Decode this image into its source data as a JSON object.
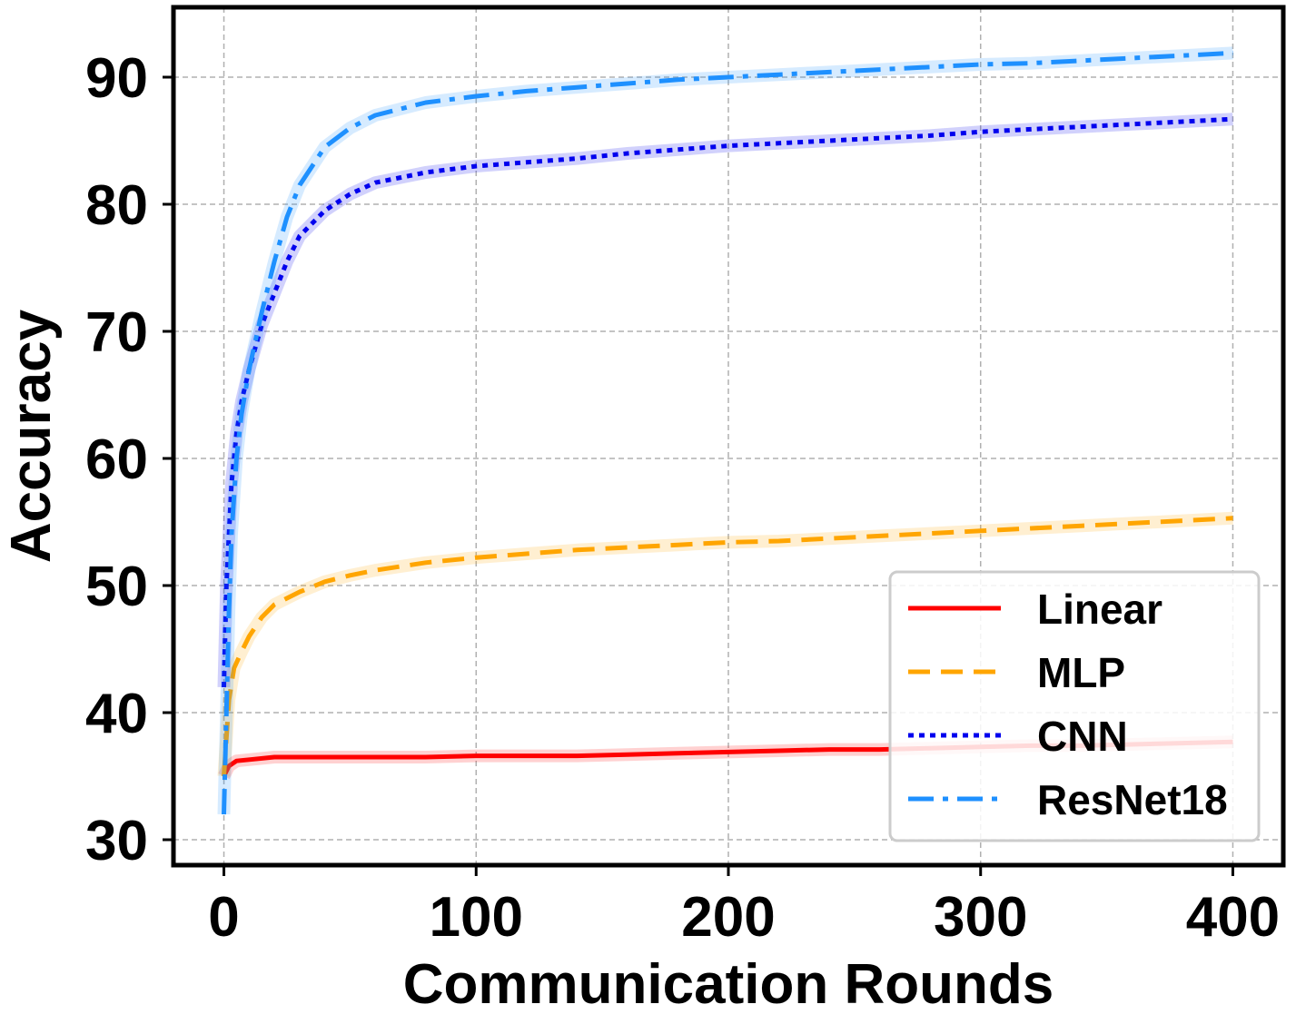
{
  "chart_data": {
    "type": "line",
    "title": "",
    "xlabel": "Communication Rounds",
    "ylabel": "Accuracy",
    "xlim": [
      -20,
      420
    ],
    "ylim": [
      28,
      95.5
    ],
    "xticks": [
      0,
      100,
      200,
      300,
      400
    ],
    "yticks": [
      30,
      40,
      50,
      60,
      70,
      80,
      90
    ],
    "grid": true,
    "legend_position": "lower-right",
    "shaded_band": true,
    "series": [
      {
        "name": "Linear",
        "color": "#ff0000",
        "style": "solid",
        "x": [
          0,
          2,
          5,
          10,
          20,
          40,
          60,
          80,
          100,
          120,
          140,
          160,
          180,
          200,
          220,
          240,
          260,
          280,
          300,
          320,
          340,
          360,
          380,
          400
        ],
        "y": [
          35.0,
          35.8,
          36.2,
          36.3,
          36.5,
          36.5,
          36.5,
          36.5,
          36.6,
          36.6,
          36.6,
          36.7,
          36.8,
          36.9,
          37.0,
          37.1,
          37.1,
          37.2,
          37.3,
          37.4,
          37.4,
          37.5,
          37.6,
          37.7
        ]
      },
      {
        "name": "MLP",
        "color": "#ffa500",
        "style": "dashed",
        "x": [
          0,
          1,
          2,
          4,
          7,
          10,
          15,
          20,
          30,
          40,
          50,
          60,
          80,
          100,
          120,
          140,
          160,
          180,
          200,
          220,
          240,
          260,
          280,
          300,
          320,
          340,
          360,
          380,
          400
        ],
        "y": [
          35.0,
          38.0,
          41.0,
          43.5,
          44.8,
          46.0,
          47.5,
          48.5,
          49.5,
          50.3,
          50.8,
          51.2,
          51.8,
          52.2,
          52.5,
          52.8,
          53.0,
          53.2,
          53.4,
          53.5,
          53.7,
          53.9,
          54.1,
          54.3,
          54.5,
          54.7,
          54.9,
          55.1,
          55.3
        ]
      },
      {
        "name": "CNN",
        "color": "#0000ee",
        "style": "dotted",
        "x": [
          0,
          1,
          2,
          3,
          5,
          7,
          10,
          15,
          20,
          25,
          30,
          40,
          50,
          60,
          80,
          100,
          120,
          140,
          160,
          180,
          200,
          220,
          240,
          260,
          280,
          300,
          320,
          340,
          360,
          380,
          400
        ],
        "y": [
          42.0,
          50.0,
          54.0,
          58.0,
          62.0,
          64.5,
          67.0,
          70.5,
          73.0,
          75.5,
          77.5,
          79.5,
          80.8,
          81.7,
          82.5,
          83.0,
          83.3,
          83.6,
          84.0,
          84.3,
          84.6,
          84.8,
          85.0,
          85.2,
          85.4,
          85.7,
          85.9,
          86.1,
          86.3,
          86.5,
          86.7
        ]
      },
      {
        "name": "ResNet18",
        "color": "#1e90ff",
        "style": "dashdot",
        "x": [
          0,
          1,
          2,
          3,
          5,
          7,
          10,
          15,
          20,
          25,
          30,
          40,
          50,
          60,
          80,
          100,
          120,
          140,
          160,
          180,
          200,
          220,
          240,
          260,
          280,
          300,
          320,
          340,
          360,
          380,
          400
        ],
        "y": [
          32.0,
          40.0,
          48.0,
          54.0,
          60.0,
          63.5,
          67.0,
          71.5,
          75.5,
          79.0,
          81.5,
          84.5,
          86.0,
          87.0,
          88.0,
          88.5,
          88.9,
          89.2,
          89.5,
          89.8,
          90.0,
          90.2,
          90.4,
          90.6,
          90.8,
          91.0,
          91.1,
          91.3,
          91.5,
          91.7,
          91.9
        ]
      }
    ]
  }
}
